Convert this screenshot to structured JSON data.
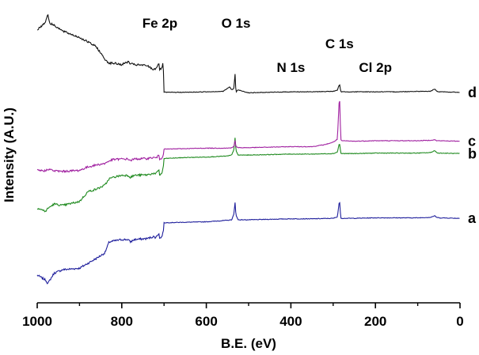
{
  "chart_data": {
    "type": "line",
    "title": "",
    "xlabel": "B.E. (eV)",
    "ylabel": "Intensity (A.U.)",
    "xlim": [
      1000,
      0
    ],
    "x_reversed": true,
    "x_ticks": [
      1000,
      800,
      600,
      400,
      200,
      0
    ],
    "y_ticks_shown": false,
    "grid": false,
    "legend": "none",
    "annotations": [
      {
        "text": "Fe 2p",
        "x": 710
      },
      {
        "text": "O 1s",
        "x": 530
      },
      {
        "text": "N 1s",
        "x": 400
      },
      {
        "text": "C 1s",
        "x": 285
      },
      {
        "text": "Cl 2p",
        "x": 200
      }
    ],
    "series": [
      {
        "name": "a",
        "color": "#1f1f9c",
        "points": [
          [
            1000,
            306
          ],
          [
            980,
            296
          ],
          [
            975,
            289
          ],
          [
            960,
            310
          ],
          [
            940,
            317
          ],
          [
            900,
            320
          ],
          [
            880,
            330
          ],
          [
            860,
            340
          ],
          [
            840,
            351
          ],
          [
            830,
            373
          ],
          [
            820,
            375
          ],
          [
            800,
            378
          ],
          [
            785,
            378
          ],
          [
            780,
            373
          ],
          [
            770,
            378
          ],
          [
            740,
            380
          ],
          [
            725,
            384
          ],
          [
            720,
            382
          ],
          [
            712,
            391
          ],
          [
            711,
            380
          ],
          [
            706,
            383
          ],
          [
            702,
            393
          ],
          [
            700,
            412
          ],
          [
            650,
            413
          ],
          [
            600,
            414
          ],
          [
            550,
            417
          ],
          [
            540,
            418
          ],
          [
            535,
            429
          ],
          [
            532,
            453
          ],
          [
            530,
            428
          ],
          [
            525,
            418
          ],
          [
            500,
            418
          ],
          [
            450,
            419
          ],
          [
            400,
            420
          ],
          [
            350,
            420
          ],
          [
            300,
            421
          ],
          [
            290,
            424
          ],
          [
            285,
            458
          ],
          [
            282,
            422
          ],
          [
            280,
            421
          ],
          [
            250,
            421
          ],
          [
            200,
            422
          ],
          [
            150,
            422
          ],
          [
            100,
            422
          ],
          [
            70,
            423
          ],
          [
            60,
            426
          ],
          [
            55,
            423
          ],
          [
            50,
            422
          ],
          [
            0,
            421
          ]
        ]
      },
      {
        "name": "b",
        "color": "#1f8a1f",
        "points": [
          [
            1000,
            442
          ],
          [
            980,
            435
          ],
          [
            975,
            441
          ],
          [
            960,
            450
          ],
          [
            940,
            447
          ],
          [
            900,
            455
          ],
          [
            880,
            475
          ],
          [
            860,
            480
          ],
          [
            840,
            488
          ],
          [
            830,
            501
          ],
          [
            820,
            504
          ],
          [
            800,
            508
          ],
          [
            785,
            508
          ],
          [
            780,
            504
          ],
          [
            770,
            508
          ],
          [
            740,
            509
          ],
          [
            725,
            512
          ],
          [
            720,
            510
          ],
          [
            712,
            520
          ],
          [
            711,
            508
          ],
          [
            706,
            511
          ],
          [
            702,
            522
          ],
          [
            700,
            542
          ],
          [
            650,
            544
          ],
          [
            600,
            545
          ],
          [
            550,
            547
          ],
          [
            540,
            549
          ],
          [
            535,
            560
          ],
          [
            532,
            584
          ],
          [
            530,
            558
          ],
          [
            525,
            549
          ],
          [
            500,
            549
          ],
          [
            450,
            550
          ],
          [
            400,
            551
          ],
          [
            350,
            551
          ],
          [
            300,
            552
          ],
          [
            290,
            555
          ],
          [
            285,
            574
          ],
          [
            282,
            553
          ],
          [
            280,
            552
          ],
          [
            250,
            552
          ],
          [
            200,
            553
          ],
          [
            150,
            553
          ],
          [
            100,
            553
          ],
          [
            70,
            554
          ],
          [
            60,
            558
          ],
          [
            55,
            554
          ],
          [
            50,
            553
          ],
          [
            0,
            552
          ]
        ]
      },
      {
        "name": "c",
        "color": "#a020a0",
        "points": [
          [
            1000,
            518
          ],
          [
            980,
            517
          ],
          [
            975,
            521
          ],
          [
            960,
            517
          ],
          [
            940,
            516
          ],
          [
            900,
            518
          ],
          [
            880,
            525
          ],
          [
            860,
            529
          ],
          [
            840,
            532
          ],
          [
            830,
            537
          ],
          [
            820,
            540
          ],
          [
            800,
            541
          ],
          [
            785,
            541
          ],
          [
            780,
            538
          ],
          [
            770,
            541
          ],
          [
            740,
            542
          ],
          [
            725,
            544
          ],
          [
            720,
            543
          ],
          [
            712,
            548
          ],
          [
            711,
            541
          ],
          [
            706,
            543
          ],
          [
            702,
            549
          ],
          [
            700,
            561
          ],
          [
            650,
            562
          ],
          [
            600,
            563
          ],
          [
            550,
            563
          ],
          [
            540,
            564
          ],
          [
            535,
            566
          ],
          [
            532,
            579
          ],
          [
            530,
            566
          ],
          [
            525,
            564
          ],
          [
            500,
            564
          ],
          [
            450,
            565
          ],
          [
            400,
            566
          ],
          [
            350,
            566
          ],
          [
            320,
            570
          ],
          [
            300,
            575
          ],
          [
            290,
            581
          ],
          [
            285,
            673
          ],
          [
            282,
            580
          ],
          [
            280,
            578
          ],
          [
            250,
            577
          ],
          [
            200,
            578
          ],
          [
            150,
            578
          ],
          [
            100,
            578
          ],
          [
            70,
            579
          ],
          [
            60,
            580
          ],
          [
            55,
            578
          ],
          [
            50,
            578
          ],
          [
            0,
            577
          ]
        ]
      },
      {
        "name": "d",
        "color": "#111111",
        "points": [
          [
            1000,
            803
          ],
          [
            990,
            810
          ],
          [
            980,
            819
          ],
          [
            975,
            835
          ],
          [
            970,
            815
          ],
          [
            960,
            812
          ],
          [
            940,
            800
          ],
          [
            900,
            787
          ],
          [
            880,
            778
          ],
          [
            860,
            768
          ],
          [
            840,
            743
          ],
          [
            830,
            735
          ],
          [
            820,
            735
          ],
          [
            800,
            732
          ],
          [
            785,
            738
          ],
          [
            780,
            734
          ],
          [
            770,
            732
          ],
          [
            740,
            730
          ],
          [
            725,
            722
          ],
          [
            720,
            724
          ],
          [
            712,
            735
          ],
          [
            711,
            721
          ],
          [
            706,
            724
          ],
          [
            702,
            736
          ],
          [
            700,
            676
          ],
          [
            650,
            676
          ],
          [
            600,
            677
          ],
          [
            560,
            678
          ],
          [
            545,
            687
          ],
          [
            540,
            681
          ],
          [
            535,
            684
          ],
          [
            532,
            713
          ],
          [
            530,
            676
          ],
          [
            525,
            681
          ],
          [
            500,
            675
          ],
          [
            450,
            676
          ],
          [
            400,
            677
          ],
          [
            350,
            677
          ],
          [
            300,
            678
          ],
          [
            290,
            680
          ],
          [
            285,
            693
          ],
          [
            282,
            678
          ],
          [
            280,
            677
          ],
          [
            250,
            677
          ],
          [
            200,
            677
          ],
          [
            150,
            677
          ],
          [
            100,
            678
          ],
          [
            70,
            678
          ],
          [
            60,
            683
          ],
          [
            55,
            678
          ],
          [
            50,
            677
          ],
          [
            0,
            676
          ]
        ]
      }
    ]
  }
}
